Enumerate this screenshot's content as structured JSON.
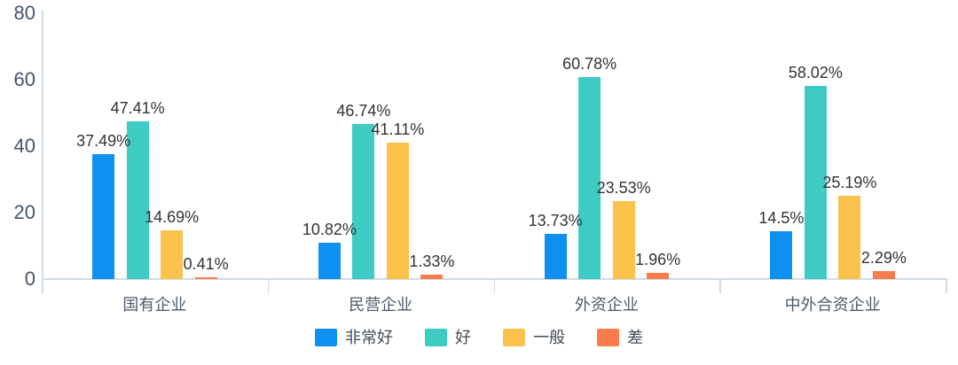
{
  "chart_data": {
    "type": "bar",
    "title": "",
    "categories": [
      "国有企业",
      "民营企业",
      "外资企业",
      "中外合资企业"
    ],
    "series": [
      {
        "name": "非常好",
        "color": "#0e90f0",
        "values": [
          37.49,
          10.82,
          13.73,
          14.5
        ],
        "labels": [
          "37.49%",
          "10.82%",
          "13.73%",
          "14.5%"
        ]
      },
      {
        "name": "好",
        "color": "#3ecbc3",
        "values": [
          47.41,
          46.74,
          60.78,
          58.02
        ],
        "labels": [
          "47.41%",
          "46.74%",
          "60.78%",
          "58.02%"
        ]
      },
      {
        "name": "一般",
        "color": "#fbc24c",
        "values": [
          14.69,
          41.11,
          23.53,
          25.19
        ],
        "labels": [
          "14.69%",
          "41.11%",
          "23.53%",
          "25.19%"
        ]
      },
      {
        "name": "差",
        "color": "#f97d4c",
        "values": [
          0.41,
          1.33,
          1.96,
          2.29
        ],
        "labels": [
          "0.41%",
          "1.33%",
          "1.96%",
          "2.29%"
        ]
      }
    ],
    "xlabel": "",
    "ylabel": "",
    "ylim": [
      0,
      80
    ],
    "yticks": [
      0,
      20,
      40,
      60,
      80
    ],
    "grid": false,
    "legend_position": "bottom"
  },
  "colors": {
    "background": "#ffffff",
    "axis_line": "#d2dbe8",
    "axis_text": "#47536b",
    "value_label_text": "#333333",
    "category_text": "#4e5a6a",
    "legend_text": "#434b55"
  }
}
